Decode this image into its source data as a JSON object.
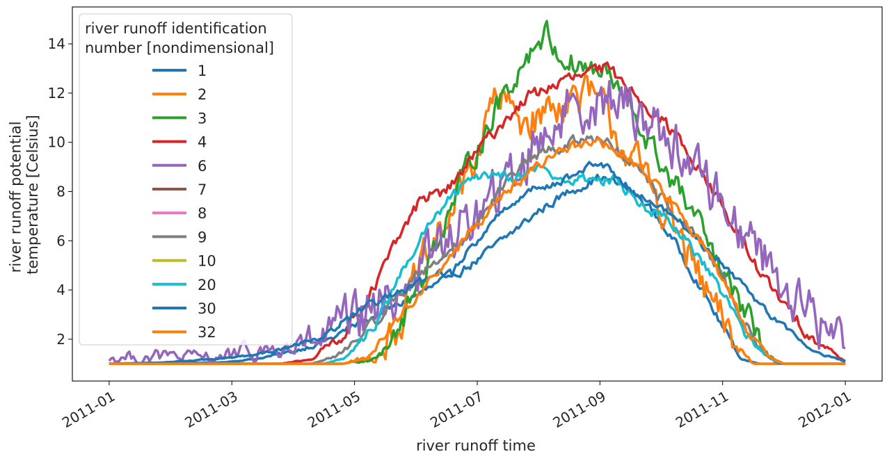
{
  "chart_data": {
    "type": "line",
    "xlabel": "river runoff time",
    "ylabel_lines": [
      "river runoff potential",
      "temperature [Celsius]"
    ],
    "x_ticks": [
      "2011-01",
      "2011-03",
      "2011-05",
      "2011-07",
      "2011-09",
      "2011-11",
      "2012-01"
    ],
    "x_tick_months": [
      0,
      2,
      4,
      6,
      8,
      10,
      12
    ],
    "x_range_months": [
      -0.6,
      12.6
    ],
    "y_ticks": [
      "2",
      "4",
      "6",
      "8",
      "10",
      "12",
      "14"
    ],
    "ylim": [
      0.3,
      15.5
    ],
    "grid": false,
    "legend": {
      "title_lines": [
        "river runoff identification",
        "number [nondimensional]"
      ],
      "placement": "upper-left"
    },
    "series": [
      {
        "name": "1",
        "color": "#1f77b4",
        "noise": 0.15,
        "points": [
          [
            0,
            1.0
          ],
          [
            1.8,
            1.05
          ],
          [
            2.4,
            1.2
          ],
          [
            3,
            1.5
          ],
          [
            3.6,
            2.0
          ],
          [
            4.2,
            2.8
          ],
          [
            4.8,
            3.5
          ],
          [
            5.4,
            4.3
          ],
          [
            6,
            5.2
          ],
          [
            6.5,
            6.2
          ],
          [
            7,
            7.2
          ],
          [
            7.5,
            8.0
          ],
          [
            8,
            8.6
          ],
          [
            8.4,
            8.2
          ],
          [
            8.8,
            7.4
          ],
          [
            9.2,
            6.0
          ],
          [
            9.6,
            4.3
          ],
          [
            10,
            2.5
          ],
          [
            10.3,
            1.2
          ],
          [
            10.6,
            1.0
          ],
          [
            12,
            1.0
          ]
        ]
      },
      {
        "name": "2",
        "color": "#ff7f0e",
        "noise": 0.7,
        "points": [
          [
            0,
            1.0
          ],
          [
            3.8,
            1.0
          ],
          [
            4.3,
            1.3
          ],
          [
            4.7,
            2.6
          ],
          [
            5.1,
            4.8
          ],
          [
            5.5,
            6.8
          ],
          [
            5.9,
            9.0
          ],
          [
            6.3,
            11.8
          ],
          [
            6.7,
            11.0
          ],
          [
            7,
            11.0
          ],
          [
            7.4,
            11.8
          ],
          [
            7.9,
            11.8
          ],
          [
            8.3,
            10.3
          ],
          [
            8.7,
            8.6
          ],
          [
            9.1,
            7.2
          ],
          [
            9.5,
            5.0
          ],
          [
            9.9,
            3.0
          ],
          [
            10.2,
            1.8
          ],
          [
            10.5,
            1.0
          ],
          [
            12,
            1.0
          ]
        ]
      },
      {
        "name": "3",
        "color": "#2ca02c",
        "noise": 0.45,
        "points": [
          [
            0,
            1.0
          ],
          [
            3.8,
            1.0
          ],
          [
            4.3,
            1.2
          ],
          [
            4.8,
            2.8
          ],
          [
            5.2,
            5.2
          ],
          [
            5.6,
            7.5
          ],
          [
            6,
            9.8
          ],
          [
            6.4,
            11.8
          ],
          [
            6.8,
            13.5
          ],
          [
            7.1,
            14.5
          ],
          [
            7.4,
            13.4
          ],
          [
            7.8,
            13.0
          ],
          [
            8.1,
            12.8
          ],
          [
            8.5,
            11.3
          ],
          [
            8.9,
            9.5
          ],
          [
            9.3,
            8.0
          ],
          [
            9.7,
            6.2
          ],
          [
            10,
            4.5
          ],
          [
            10.4,
            3.0
          ],
          [
            10.7,
            1.5
          ],
          [
            10.9,
            1.0
          ],
          [
            12,
            1.0
          ]
        ]
      },
      {
        "name": "4",
        "color": "#d62728",
        "noise": 0.22,
        "points": [
          [
            0,
            1.0
          ],
          [
            2.8,
            1.0
          ],
          [
            3.3,
            1.2
          ],
          [
            3.8,
            2.2
          ],
          [
            4.3,
            4.0
          ],
          [
            4.7,
            6.0
          ],
          [
            5.1,
            7.8
          ],
          [
            5.5,
            8.0
          ],
          [
            5.9,
            9.3
          ],
          [
            6.3,
            10.5
          ],
          [
            6.8,
            11.8
          ],
          [
            7.2,
            12.3
          ],
          [
            7.7,
            12.7
          ],
          [
            8.1,
            13.0
          ],
          [
            8.5,
            12.2
          ],
          [
            8.9,
            11.2
          ],
          [
            9.4,
            9.8
          ],
          [
            9.9,
            7.8
          ],
          [
            10.3,
            6.0
          ],
          [
            10.8,
            4.0
          ],
          [
            11.2,
            2.8
          ],
          [
            11.6,
            1.8
          ],
          [
            12,
            1.1
          ]
        ]
      },
      {
        "name": "6",
        "color": "#9467bd",
        "noise": 0.9,
        "points": [
          [
            0,
            1.2
          ],
          [
            0.5,
            1.3
          ],
          [
            1,
            1.3
          ],
          [
            1.5,
            1.25
          ],
          [
            2,
            1.35
          ],
          [
            2.5,
            1.5
          ],
          [
            3,
            1.6
          ],
          [
            3.5,
            2.0
          ],
          [
            4,
            2.6
          ],
          [
            4.5,
            3.5
          ],
          [
            5,
            4.8
          ],
          [
            5.5,
            6.0
          ],
          [
            6,
            7.0
          ],
          [
            6.5,
            8.3
          ],
          [
            7,
            10.2
          ],
          [
            7.5,
            11.5
          ],
          [
            8,
            11.8
          ],
          [
            8.4,
            11.5
          ],
          [
            8.8,
            11.0
          ],
          [
            9.2,
            10.0
          ],
          [
            9.6,
            8.8
          ],
          [
            10,
            7.6
          ],
          [
            10.4,
            6.3
          ],
          [
            10.8,
            5.0
          ],
          [
            11.2,
            3.6
          ],
          [
            11.6,
            2.6
          ],
          [
            12,
            2.0
          ]
        ]
      },
      {
        "name": "9",
        "color": "#7f7f7f",
        "noise": 0.2,
        "points": [
          [
            0,
            1.0
          ],
          [
            3.3,
            1.0
          ],
          [
            3.7,
            1.3
          ],
          [
            4.2,
            2.3
          ],
          [
            4.7,
            3.8
          ],
          [
            5.2,
            5.0
          ],
          [
            5.7,
            5.8
          ],
          [
            6.2,
            7.5
          ],
          [
            6.7,
            9.0
          ],
          [
            7.1,
            9.6
          ],
          [
            7.6,
            10.0
          ],
          [
            8,
            10.3
          ],
          [
            8.4,
            9.3
          ],
          [
            8.8,
            8.3
          ],
          [
            9.2,
            7.2
          ],
          [
            9.6,
            6.0
          ],
          [
            10,
            4.5
          ],
          [
            10.3,
            3.0
          ],
          [
            10.6,
            1.6
          ],
          [
            10.9,
            1.0
          ],
          [
            12,
            1.0
          ]
        ]
      },
      {
        "name": "20",
        "color": "#17becf",
        "noise": 0.2,
        "points": [
          [
            0,
            1.0
          ],
          [
            3.5,
            1.0
          ],
          [
            3.9,
            1.3
          ],
          [
            4.3,
            2.5
          ],
          [
            4.7,
            4.3
          ],
          [
            5.1,
            6.2
          ],
          [
            5.5,
            7.5
          ],
          [
            5.9,
            8.6
          ],
          [
            6.3,
            8.8
          ],
          [
            6.7,
            8.6
          ],
          [
            7,
            9.0
          ],
          [
            7.4,
            8.4
          ],
          [
            7.8,
            8.5
          ],
          [
            8.2,
            8.5
          ],
          [
            8.6,
            7.6
          ],
          [
            9,
            7.0
          ],
          [
            9.4,
            6.0
          ],
          [
            9.8,
            4.6
          ],
          [
            10.2,
            3.0
          ],
          [
            10.5,
            1.8
          ],
          [
            10.8,
            1.2
          ],
          [
            11,
            1.0
          ],
          [
            12,
            1.0
          ]
        ]
      },
      {
        "name": "30",
        "color": "#1f77b4",
        "noise": 0.14,
        "points": [
          [
            0,
            1.0
          ],
          [
            0.8,
            1.05
          ],
          [
            1.8,
            1.2
          ],
          [
            2.5,
            1.4
          ],
          [
            3.2,
            1.9
          ],
          [
            3.7,
            2.5
          ],
          [
            4.2,
            3.3
          ],
          [
            4.7,
            3.8
          ],
          [
            5.2,
            4.5
          ],
          [
            5.6,
            4.8
          ],
          [
            6,
            6.0
          ],
          [
            6.4,
            7.2
          ],
          [
            6.8,
            8.0
          ],
          [
            7.2,
            8.3
          ],
          [
            7.6,
            8.7
          ],
          [
            8,
            9.2
          ],
          [
            8.4,
            8.4
          ],
          [
            8.8,
            7.6
          ],
          [
            9.2,
            7.0
          ],
          [
            9.6,
            6.0
          ],
          [
            10,
            5.0
          ],
          [
            10.4,
            4.0
          ],
          [
            10.8,
            3.0
          ],
          [
            11.2,
            2.0
          ],
          [
            11.6,
            1.4
          ],
          [
            12,
            1.1
          ]
        ]
      },
      {
        "name": "32",
        "color": "#ff7f0e",
        "noise": 0.18,
        "points": [
          [
            0,
            1.0
          ],
          [
            3.8,
            1.0
          ],
          [
            4.2,
            1.2
          ],
          [
            4.6,
            2.5
          ],
          [
            5.1,
            4.0
          ],
          [
            5.6,
            5.4
          ],
          [
            6,
            6.8
          ],
          [
            6.5,
            8.0
          ],
          [
            7,
            9.0
          ],
          [
            7.4,
            9.8
          ],
          [
            7.8,
            10.0
          ],
          [
            8.2,
            9.8
          ],
          [
            8.6,
            9.0
          ],
          [
            9,
            8.0
          ],
          [
            9.4,
            6.8
          ],
          [
            9.8,
            5.4
          ],
          [
            10.1,
            3.8
          ],
          [
            10.4,
            2.4
          ],
          [
            10.7,
            1.4
          ],
          [
            11,
            1.0
          ],
          [
            12,
            1.0
          ]
        ]
      }
    ],
    "legend_entries": [
      {
        "name": "1",
        "color": "#1f77b4"
      },
      {
        "name": "2",
        "color": "#ff7f0e"
      },
      {
        "name": "3",
        "color": "#2ca02c"
      },
      {
        "name": "4",
        "color": "#d62728"
      },
      {
        "name": "6",
        "color": "#9467bd"
      },
      {
        "name": "7",
        "color": "#8c564b"
      },
      {
        "name": "8",
        "color": "#e377c2"
      },
      {
        "name": "9",
        "color": "#7f7f7f"
      },
      {
        "name": "10",
        "color": "#bcbd22"
      },
      {
        "name": "20",
        "color": "#17becf"
      },
      {
        "name": "30",
        "color": "#1f77b4"
      },
      {
        "name": "32",
        "color": "#ff7f0e"
      }
    ]
  }
}
